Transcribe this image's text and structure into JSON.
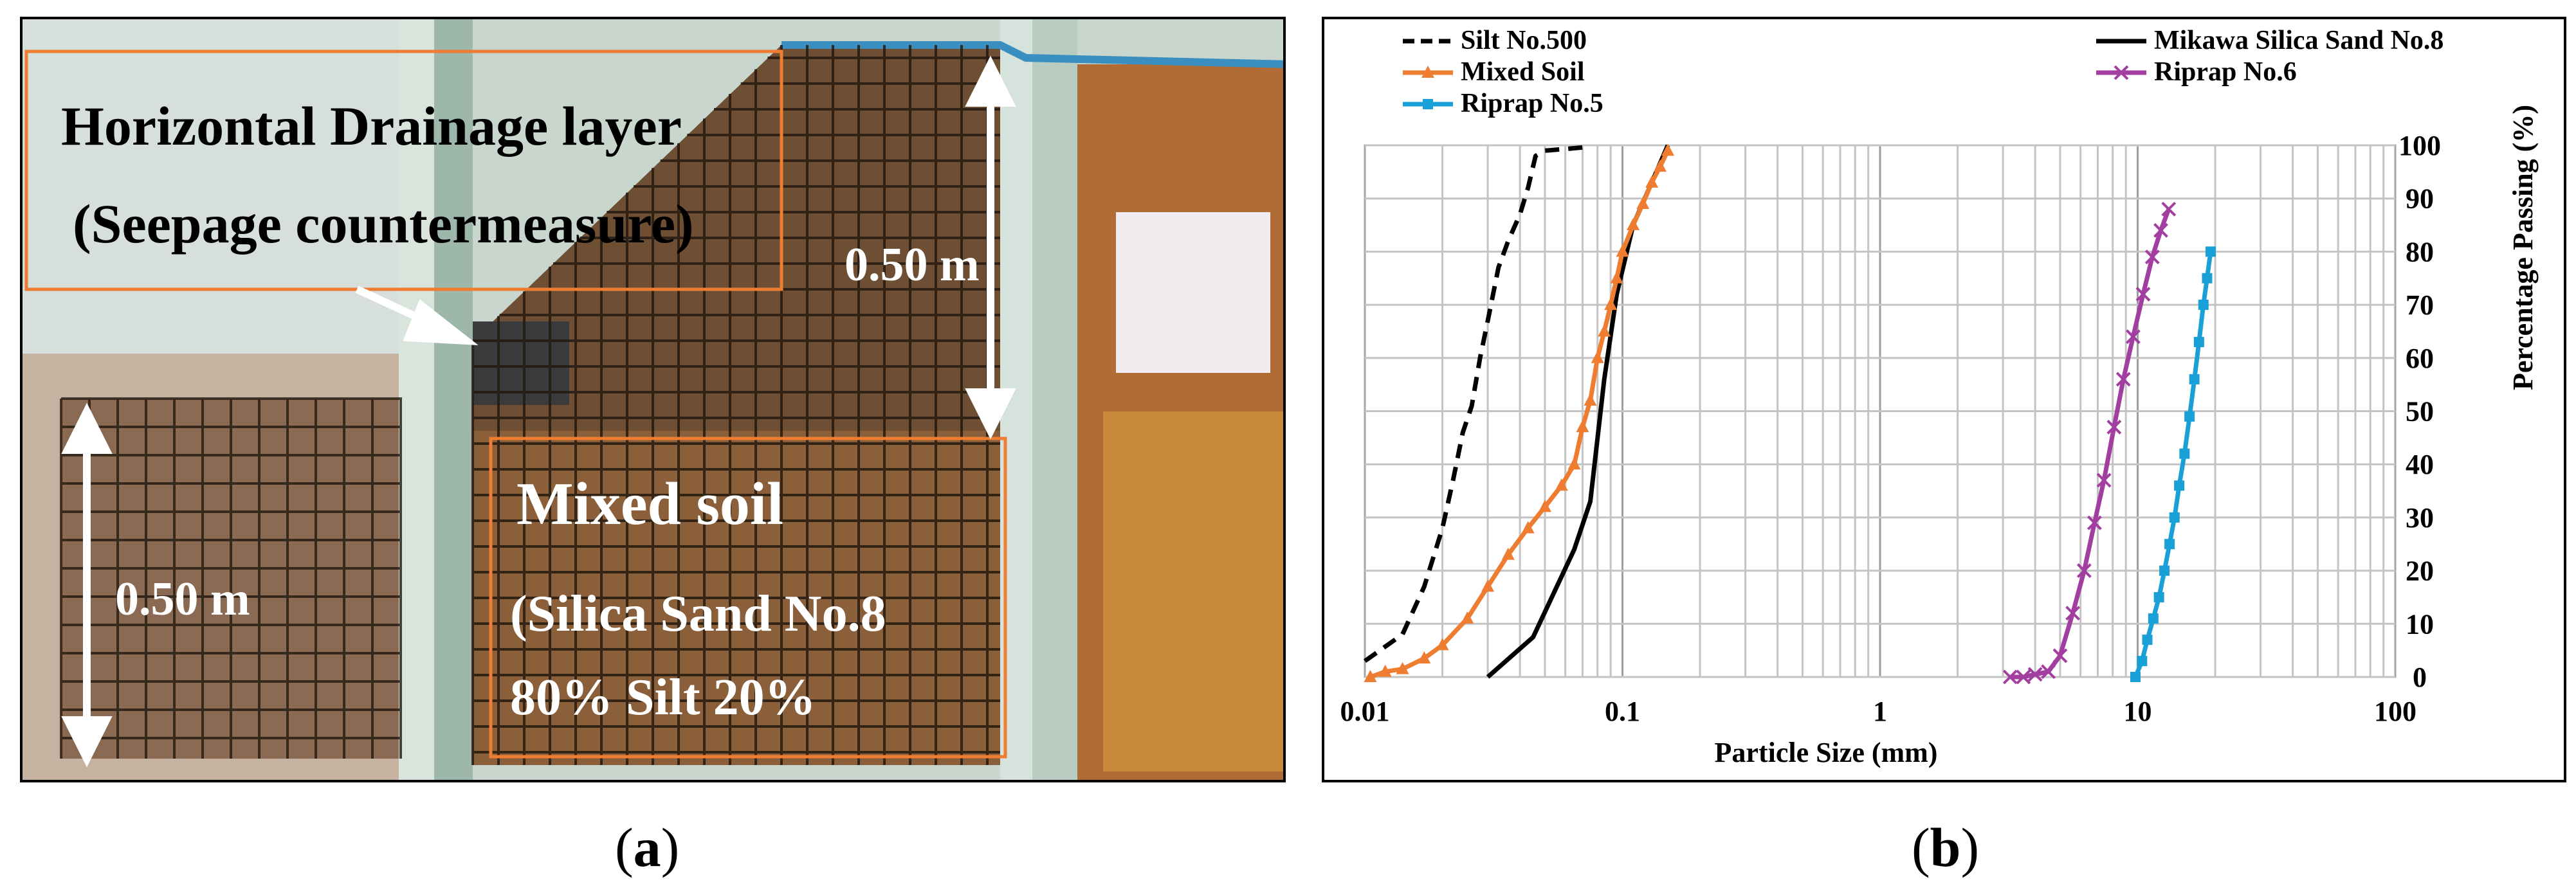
{
  "figure": {
    "panel_a_label": "a",
    "panel_b_label": "b"
  },
  "photo": {
    "drain_title": "Horizontal Drainage layer",
    "drain_subtitle": "(Seepage countermeasure)",
    "mixed_title": "Mixed soil",
    "mixed_line1": "(Silica Sand No.8",
    "mixed_line2": "80% Silt 20%",
    "dimension_right": "0.50 m",
    "dimension_left": "0.50 m",
    "colors": {
      "box_outline": "#ee7d31",
      "arrow": "#ffffff",
      "grid": "#2a2416"
    }
  },
  "chart_data": {
    "type": "line",
    "xlabel": "Particle Size (mm)",
    "ylabel": "Percentage Passing (%)",
    "x_scale": "log",
    "xlim": [
      0.01,
      100
    ],
    "ylim": [
      0,
      100
    ],
    "xticks": [
      "0.01",
      "0.1",
      "1",
      "10",
      "100"
    ],
    "yticks": [
      "0",
      "10",
      "20",
      "30",
      "40",
      "50",
      "60",
      "70",
      "80",
      "90",
      "100"
    ],
    "grid": true,
    "legend_position": "top",
    "series": [
      {
        "name": "Silt No.500",
        "color": "#000000",
        "style": "dashed",
        "marker": "none",
        "x": [
          0.01,
          0.014,
          0.017,
          0.02,
          0.022,
          0.024,
          0.026,
          0.028,
          0.03,
          0.033,
          0.036,
          0.04,
          0.043,
          0.046,
          0.05,
          0.06,
          0.07
        ],
        "y": [
          3,
          8,
          17,
          28,
          37,
          46,
          51,
          60,
          67,
          77,
          82,
          87,
          92,
          98,
          99,
          99.3,
          99.6
        ]
      },
      {
        "name": "Mikawa Silica Sand No.8",
        "color": "#000000",
        "style": "solid",
        "marker": "none",
        "x": [
          0.03,
          0.045,
          0.065,
          0.075,
          0.085,
          0.095,
          0.11,
          0.13,
          0.15
        ],
        "y": [
          0,
          7.5,
          24,
          33,
          56,
          72,
          85,
          93,
          100
        ]
      },
      {
        "name": "Mixed Soil",
        "color": "#ee7d31",
        "style": "solid",
        "marker": "triangle",
        "x": [
          0.0105,
          0.012,
          0.014,
          0.017,
          0.02,
          0.025,
          0.03,
          0.036,
          0.043,
          0.05,
          0.058,
          0.065,
          0.07,
          0.075,
          0.08,
          0.085,
          0.09,
          0.095,
          0.1,
          0.11,
          0.12,
          0.13,
          0.14,
          0.15
        ],
        "y": [
          0,
          1,
          1.5,
          3.5,
          6,
          11,
          17,
          23,
          28,
          32,
          36,
          40,
          47,
          52,
          60,
          65,
          70,
          75,
          80,
          85,
          89,
          93,
          96,
          99
        ]
      },
      {
        "name": "Riprap No.6",
        "color": "#a33ea1",
        "style": "solid",
        "marker": "x",
        "x": [
          3.2,
          3.6,
          4.0,
          4.5,
          5.0,
          5.6,
          6.2,
          6.8,
          7.4,
          8.1,
          8.8,
          9.6,
          10.5,
          11.4,
          12.3,
          13.2
        ],
        "y": [
          0,
          0,
          0.5,
          1,
          4,
          12,
          20,
          29,
          37,
          47,
          56,
          64,
          72,
          79,
          84,
          88
        ]
      },
      {
        "name": "Riprap No.5",
        "color": "#19a0d7",
        "style": "solid",
        "marker": "square",
        "x": [
          9.8,
          10.4,
          10.9,
          11.5,
          12.1,
          12.7,
          13.3,
          13.9,
          14.5,
          15.2,
          15.9,
          16.6,
          17.3,
          18.0,
          18.6,
          19.2
        ],
        "y": [
          0,
          3,
          7,
          11,
          15,
          20,
          25,
          30,
          36,
          42,
          49,
          56,
          63,
          70,
          75,
          80
        ]
      }
    ]
  }
}
